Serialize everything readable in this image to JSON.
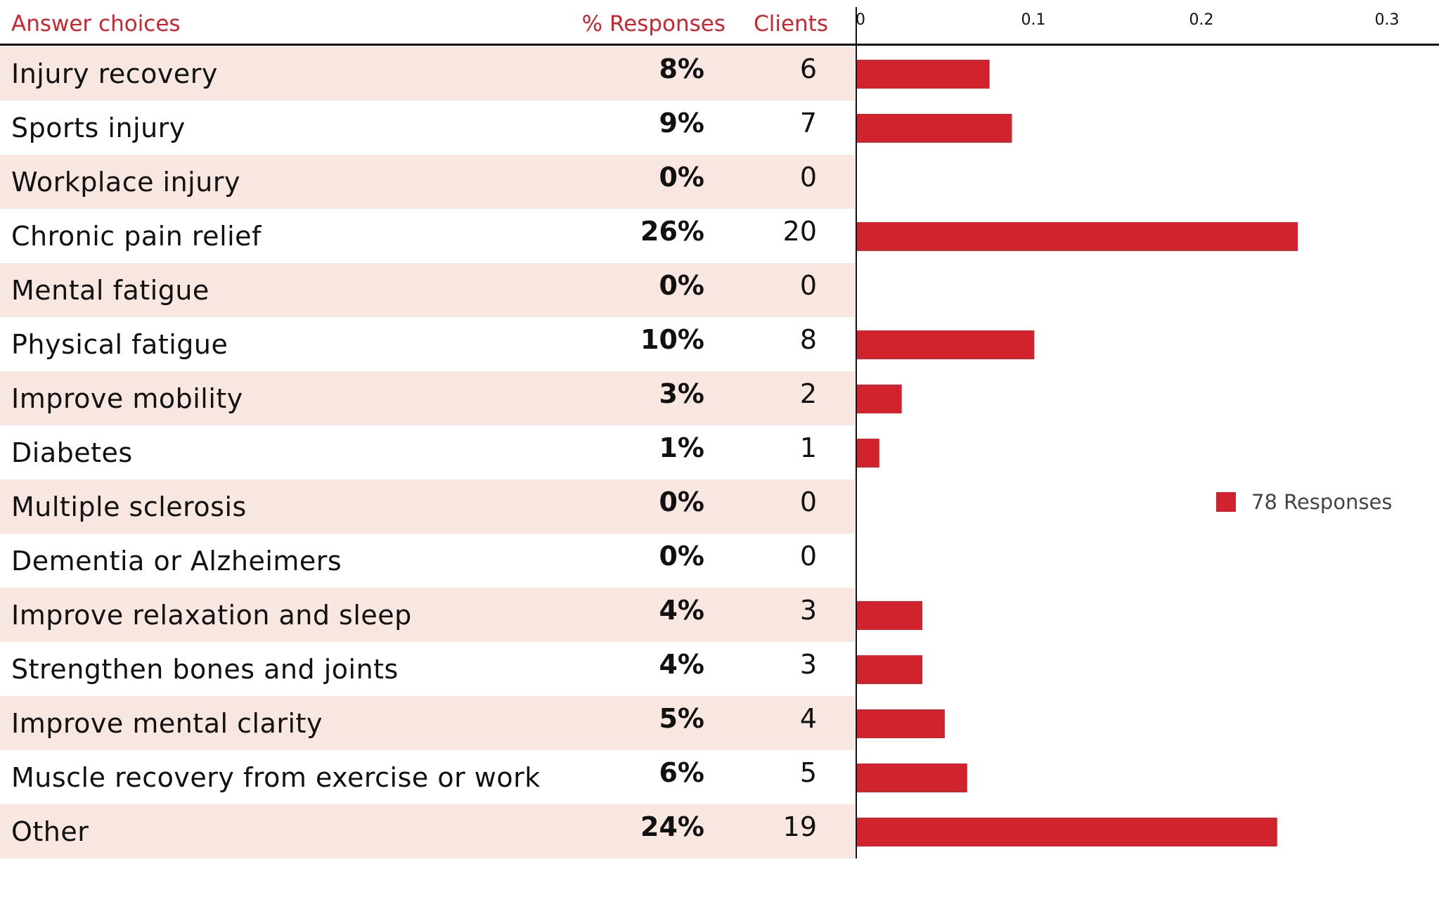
{
  "header": {
    "answer_choices": "Answer choices",
    "pct_responses": "% Responses",
    "clients": "Clients"
  },
  "colors": {
    "accent": "#d0232e",
    "row_shade": "#f8e6e0",
    "bar": "#d0232e"
  },
  "chart_data": {
    "type": "bar",
    "orientation": "horizontal",
    "categories": [
      "Injury recovery",
      "Sports injury",
      "Workplace injury",
      "Chronic pain relief",
      "Mental fatigue",
      "Physical fatigue",
      "Improve mobility",
      "Diabetes",
      "Multiple sclerosis",
      "Dementia or Alzheimers",
      "Improve relaxation and sleep",
      "Strengthen bones and joints",
      "Improve mental clarity",
      "Muscle recovery from exercise or work",
      "Other"
    ],
    "pct_labels": [
      "8%",
      "9%",
      "0%",
      "26%",
      "0%",
      "10%",
      "3%",
      "1%",
      "0%",
      "0%",
      "4%",
      "4%",
      "5%",
      "6%",
      "24%"
    ],
    "clients": [
      "6",
      "7",
      "0",
      "20",
      "0",
      "8",
      "2",
      "1",
      "0",
      "0",
      "3",
      "3",
      "4",
      "5",
      "19"
    ],
    "series": [
      {
        "name": "78 Responses",
        "values": [
          0.077,
          0.09,
          0,
          0.256,
          0,
          0.103,
          0.026,
          0.013,
          0,
          0,
          0.038,
          0.038,
          0.051,
          0.064,
          0.244
        ]
      }
    ],
    "xticks": [
      "0",
      "0.1",
      "0.2",
      "0.3"
    ],
    "xlim": [
      0,
      0.3
    ],
    "legend_position": "right"
  }
}
